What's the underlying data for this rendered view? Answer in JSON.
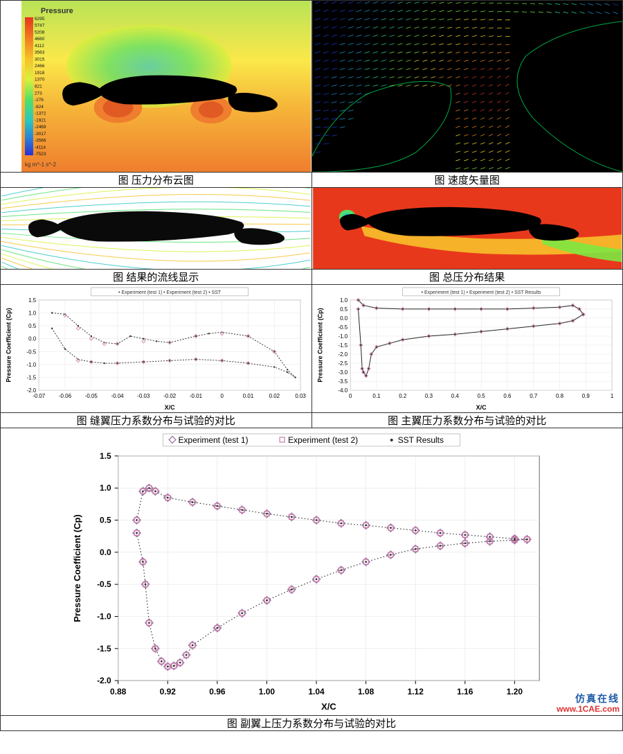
{
  "captions": {
    "pressure_contour": "图 压力分布云图",
    "velocity_vector": "图 速度矢量图",
    "streamlines": "图 结果的流线显示",
    "total_pressure": "图 总压分布结果",
    "slat_comparison": "图 缝翼压力系数分布与试验的对比",
    "main_comparison": "图 主翼压力系数分布与试验的对比",
    "flap_comparison": "图 副翼上压力系数分布与试验的对比"
  },
  "watermark": {
    "line1": "仿真在线",
    "line2": "www.1CAE.com"
  },
  "colorbar": {
    "title": "Pressure",
    "values": [
      "6295",
      "5747",
      "5208",
      "4660",
      "4112",
      "3563",
      "3015",
      "2466",
      "1918",
      "1370",
      "821",
      "273",
      "-276",
      "-824",
      "-1372",
      "-1921",
      "-2469",
      "-3017",
      "-3566",
      "-4114",
      "-7523"
    ],
    "unit": "kg m^-1 s^-2"
  },
  "pressure_contour": {
    "type": "contour",
    "bg_gradient": [
      "#b8e356",
      "#fbe84a",
      "#f6b93a",
      "#ef7e2e"
    ],
    "airfoil_color": "#000000",
    "colormap": [
      "#2b2fd6",
      "#2a7fd8",
      "#2ac6c2",
      "#4fe06a",
      "#d9f03b",
      "#f7c02a",
      "#f27a22",
      "#e73520"
    ]
  },
  "velocity_vector": {
    "type": "vector",
    "bg": "#000000",
    "airfoil_color": "#000000",
    "vector_colors": [
      "#1a3bd1",
      "#1a9bd8",
      "#20d39a",
      "#7ee741",
      "#f2e02a",
      "#f48a1c",
      "#e73520"
    ]
  },
  "streamlines": {
    "type": "streamlines",
    "bg": "#ffffff",
    "airfoil_color": "#0a0a0a",
    "line_colors": [
      "#2ac6c2",
      "#4fe06a",
      "#d9f03b",
      "#f7c02a"
    ]
  },
  "total_pressure": {
    "type": "contour",
    "bg": "#e8381c",
    "airfoil_color": "#000000",
    "wake_colors": [
      "#f2e02a",
      "#7ee741",
      "#2ac6c2",
      "#1a3bd1"
    ]
  },
  "slat_chart": {
    "type": "scatter-line",
    "legend": "• Experiment (test 1) • Experiment (test 2) • SST",
    "xlabel": "X/C",
    "ylabel": "Pressure Coefficient (Cp)",
    "xlim": [
      -0.07,
      0.03
    ],
    "ylim": [
      -2.0,
      1.5
    ],
    "xticks": [
      -0.07,
      -0.06,
      -0.05,
      -0.04,
      -0.03,
      -0.02,
      -0.01,
      0,
      0.01,
      0.02,
      0.03
    ],
    "yticks": [
      -2.0,
      -1.5,
      -1.0,
      -0.5,
      0.0,
      0.5,
      1.0,
      1.5
    ],
    "series_sst_upper": [
      [
        -0.065,
        1.0
      ],
      [
        -0.06,
        0.95
      ],
      [
        -0.055,
        0.5
      ],
      [
        -0.05,
        0.1
      ],
      [
        -0.045,
        -0.15
      ],
      [
        -0.04,
        -0.2
      ],
      [
        -0.035,
        0.1
      ],
      [
        -0.03,
        0.0
      ],
      [
        -0.025,
        -0.1
      ],
      [
        -0.02,
        -0.15
      ],
      [
        -0.01,
        0.1
      ],
      [
        -0.005,
        0.2
      ],
      [
        0.0,
        0.25
      ],
      [
        0.01,
        0.1
      ],
      [
        0.02,
        -0.5
      ],
      [
        0.025,
        -1.2
      ],
      [
        0.028,
        -1.5
      ]
    ],
    "series_sst_lower": [
      [
        -0.065,
        0.4
      ],
      [
        -0.06,
        -0.4
      ],
      [
        -0.055,
        -0.8
      ],
      [
        -0.05,
        -0.9
      ],
      [
        -0.045,
        -0.95
      ],
      [
        -0.04,
        -0.95
      ],
      [
        -0.03,
        -0.9
      ],
      [
        -0.02,
        -0.85
      ],
      [
        -0.01,
        -0.8
      ],
      [
        0.0,
        -0.85
      ],
      [
        0.01,
        -0.95
      ],
      [
        0.02,
        -1.1
      ],
      [
        0.025,
        -1.3
      ],
      [
        0.028,
        -1.5
      ]
    ],
    "exp_points": [
      [
        -0.06,
        0.9
      ],
      [
        -0.055,
        0.4
      ],
      [
        -0.05,
        0.0
      ],
      [
        -0.045,
        -0.2
      ],
      [
        -0.04,
        -0.2
      ],
      [
        -0.03,
        -0.1
      ],
      [
        -0.02,
        -0.15
      ],
      [
        -0.01,
        0.1
      ],
      [
        0.0,
        0.2
      ],
      [
        0.01,
        0.1
      ],
      [
        0.02,
        -0.5
      ],
      [
        -0.055,
        -0.85
      ],
      [
        -0.05,
        -0.9
      ],
      [
        -0.04,
        -0.95
      ],
      [
        -0.03,
        -0.9
      ],
      [
        -0.02,
        -0.85
      ],
      [
        -0.01,
        -0.8
      ],
      [
        0.0,
        -0.85
      ],
      [
        0.01,
        -0.95
      ]
    ],
    "line_color": "#333",
    "point_color": "#c77aa8"
  },
  "main_chart": {
    "type": "scatter-line",
    "legend": "• Experiment (test 1) • Experiment (test 2) • SST Results",
    "xlabel": "X/C",
    "ylabel": "Pressure Coefficient (Cp)",
    "xlim": [
      0.0,
      1.0
    ],
    "ylim": [
      -4.0,
      1.0
    ],
    "xticks": [
      0.0,
      0.1,
      0.2,
      0.3,
      0.4,
      0.5,
      0.6,
      0.7,
      0.8,
      0.9,
      1.0
    ],
    "yticks": [
      -4.0,
      -3.5,
      -3.0,
      -2.5,
      -2.0,
      -1.5,
      -1.0,
      -0.5,
      0.0,
      0.5,
      1.0
    ],
    "series_upper": [
      [
        0.03,
        1.0
      ],
      [
        0.05,
        0.7
      ],
      [
        0.1,
        0.55
      ],
      [
        0.2,
        0.5
      ],
      [
        0.3,
        0.5
      ],
      [
        0.4,
        0.5
      ],
      [
        0.5,
        0.5
      ],
      [
        0.6,
        0.5
      ],
      [
        0.7,
        0.55
      ],
      [
        0.8,
        0.6
      ],
      [
        0.85,
        0.7
      ],
      [
        0.875,
        0.5
      ],
      [
        0.89,
        0.2
      ]
    ],
    "series_lower": [
      [
        0.03,
        0.5
      ],
      [
        0.04,
        -1.5
      ],
      [
        0.045,
        -2.8
      ],
      [
        0.05,
        -3.0
      ],
      [
        0.06,
        -3.2
      ],
      [
        0.07,
        -2.8
      ],
      [
        0.08,
        -2.0
      ],
      [
        0.1,
        -1.6
      ],
      [
        0.15,
        -1.4
      ],
      [
        0.2,
        -1.2
      ],
      [
        0.3,
        -1.0
      ],
      [
        0.4,
        -0.9
      ],
      [
        0.5,
        -0.75
      ],
      [
        0.6,
        -0.6
      ],
      [
        0.7,
        -0.45
      ],
      [
        0.8,
        -0.3
      ],
      [
        0.85,
        -0.15
      ],
      [
        0.89,
        0.2
      ]
    ],
    "line_color": "#222",
    "point_color": "#c77aa8"
  },
  "flap_chart": {
    "type": "scatter-line",
    "legend_items": [
      "Experiment (test 1)",
      "Experiment (test 2)",
      "SST Results"
    ],
    "legend_markers": [
      "diamond",
      "square",
      "dot"
    ],
    "legend_colors": [
      "#9a6aa0",
      "#c77aa8",
      "#333333"
    ],
    "xlabel": "X/C",
    "ylabel": "Pressure Coefficient (Cp)",
    "xlim": [
      0.88,
      1.22
    ],
    "ylim": [
      -2.0,
      1.5
    ],
    "xticks": [
      0.88,
      0.92,
      0.96,
      1.0,
      1.04,
      1.08,
      1.12,
      1.16,
      1.2
    ],
    "yticks": [
      -2.0,
      -1.5,
      -1.0,
      -0.5,
      0.0,
      0.5,
      1.0,
      1.5
    ],
    "series_upper": [
      [
        0.895,
        0.5
      ],
      [
        0.9,
        0.95
      ],
      [
        0.905,
        1.0
      ],
      [
        0.91,
        0.95
      ],
      [
        0.92,
        0.85
      ],
      [
        0.94,
        0.78
      ],
      [
        0.96,
        0.72
      ],
      [
        0.98,
        0.66
      ],
      [
        1.0,
        0.6
      ],
      [
        1.02,
        0.55
      ],
      [
        1.04,
        0.5
      ],
      [
        1.06,
        0.45
      ],
      [
        1.08,
        0.42
      ],
      [
        1.1,
        0.38
      ],
      [
        1.12,
        0.34
      ],
      [
        1.14,
        0.3
      ],
      [
        1.16,
        0.27
      ],
      [
        1.18,
        0.24
      ],
      [
        1.2,
        0.21
      ],
      [
        1.21,
        0.2
      ]
    ],
    "series_lower": [
      [
        0.895,
        0.3
      ],
      [
        0.9,
        -0.15
      ],
      [
        0.902,
        -0.5
      ],
      [
        0.905,
        -1.1
      ],
      [
        0.91,
        -1.5
      ],
      [
        0.915,
        -1.7
      ],
      [
        0.92,
        -1.78
      ],
      [
        0.925,
        -1.77
      ],
      [
        0.93,
        -1.72
      ],
      [
        0.935,
        -1.6
      ],
      [
        0.94,
        -1.45
      ],
      [
        0.96,
        -1.18
      ],
      [
        0.98,
        -0.95
      ],
      [
        1.0,
        -0.75
      ],
      [
        1.02,
        -0.58
      ],
      [
        1.04,
        -0.42
      ],
      [
        1.06,
        -0.28
      ],
      [
        1.08,
        -0.15
      ],
      [
        1.1,
        -0.04
      ],
      [
        1.12,
        0.05
      ],
      [
        1.14,
        0.1
      ],
      [
        1.16,
        0.14
      ],
      [
        1.18,
        0.17
      ],
      [
        1.2,
        0.19
      ],
      [
        1.21,
        0.2
      ]
    ],
    "line_color": "#333",
    "point_color_1": "#9a6aa0",
    "point_color_2": "#c77aa8",
    "title_fontsize": 13,
    "label_fontsize": 13,
    "tick_fontsize": 12
  }
}
